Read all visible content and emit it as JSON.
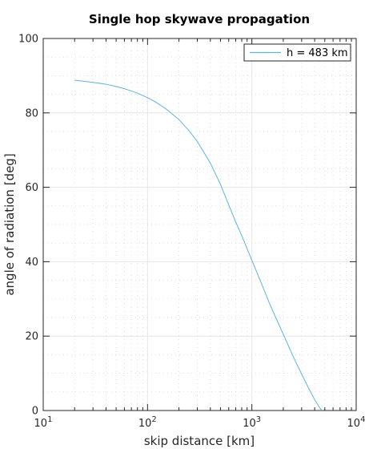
{
  "chart_data": {
    "type": "line",
    "title": "Single hop skywave propagation",
    "xlabel": "skip distance [km]",
    "ylabel": "angle of radiation [deg]",
    "xscale": "log",
    "xlim": [
      10,
      10000
    ],
    "ylim": [
      0,
      100
    ],
    "grid": true,
    "minor_grid": true,
    "legend_position": "top-right",
    "x_ticks": [
      {
        "value": 10,
        "base": "10",
        "exp": "1"
      },
      {
        "value": 100,
        "base": "10",
        "exp": "2"
      },
      {
        "value": 1000,
        "base": "10",
        "exp": "3"
      },
      {
        "value": 10000,
        "base": "10",
        "exp": "4"
      }
    ],
    "y_ticks": [
      0,
      20,
      40,
      60,
      80,
      100
    ],
    "series": [
      {
        "name": "h = 483 km",
        "color": "#5ab4e6",
        "x": [
          20,
          30,
          40,
          50,
          60,
          70,
          80,
          100,
          120,
          150,
          200,
          250,
          300,
          400,
          500,
          600,
          700,
          800,
          1000,
          1200,
          1500,
          2000,
          2500,
          3000,
          3500,
          4000,
          4500,
          4700
        ],
        "y": [
          88.8,
          88.2,
          87.7,
          87.1,
          86.5,
          85.9,
          85.3,
          84.1,
          82.9,
          81.1,
          78.2,
          75.2,
          72.3,
          66.5,
          60.8,
          55.3,
          50.7,
          47.0,
          40.4,
          35.0,
          28.3,
          20.5,
          14.4,
          9.8,
          6.0,
          2.9,
          0.6,
          0
        ]
      }
    ]
  }
}
